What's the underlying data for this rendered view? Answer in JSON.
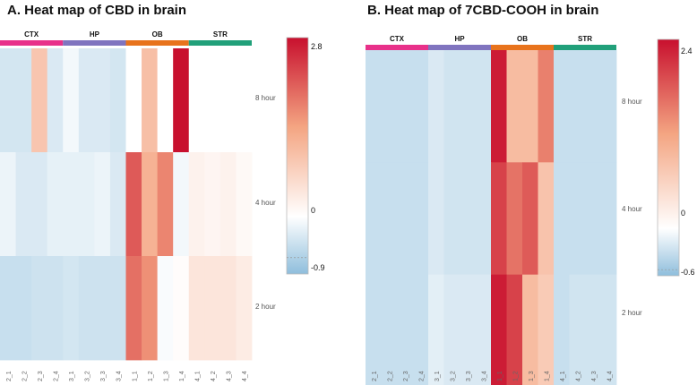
{
  "chart_data": [
    {
      "type": "heatmap",
      "title": "A. Heat map of CBD in brain",
      "groups": [
        "CTX",
        "HP",
        "OB",
        "STR"
      ],
      "group_colors": [
        "#e8318a",
        "#8074bf",
        "#e8731c",
        "#21a07a"
      ],
      "columns": [
        "2_1",
        "2_2",
        "2_3",
        "2_4",
        "3_1",
        "3_2",
        "3_3",
        "3_4",
        "1_1",
        "1_2",
        "1_3",
        "1_4",
        "4_1",
        "4_2",
        "4_3",
        "4_4"
      ],
      "rows": [
        "8 hour",
        "4 hour",
        "2 hour"
      ],
      "values": [
        [
          -0.35,
          -0.35,
          0.9,
          -0.3,
          -0.1,
          -0.3,
          -0.3,
          -0.35,
          0.0,
          1.0,
          0.0,
          2.8,
          0.0,
          0.0,
          0.0,
          0.0
        ],
        [
          -0.15,
          -0.3,
          -0.3,
          -0.2,
          -0.2,
          -0.2,
          -0.15,
          -0.3,
          2.1,
          1.2,
          1.7,
          -0.1,
          0.2,
          0.15,
          0.2,
          0.1
        ],
        [
          -0.45,
          -0.45,
          -0.4,
          -0.4,
          -0.35,
          -0.4,
          -0.4,
          -0.4,
          1.9,
          1.6,
          -0.05,
          0.05,
          0.4,
          0.4,
          0.4,
          0.3
        ]
      ],
      "colorbar": {
        "max": 2.8,
        "zero": 0,
        "min": -0.9,
        "max_label": "2.8",
        "zero_label": "0",
        "min_label": "-0.9"
      }
    },
    {
      "type": "heatmap",
      "title": "B. Heat map of 7CBD-COOH in brain",
      "groups": [
        "CTX",
        "HP",
        "OB",
        "STR"
      ],
      "group_colors": [
        "#e8318a",
        "#8074bf",
        "#e8731c",
        "#21a07a"
      ],
      "columns": [
        "2_1",
        "2_2",
        "2_3",
        "2_4",
        "3_1",
        "3_2",
        "3_3",
        "3_4",
        "1_1",
        "1_2",
        "1_3",
        "1_4",
        "4_1",
        "4_2",
        "4_3",
        "4_4"
      ],
      "rows": [
        "8 hour",
        "4 hour",
        "2 hour"
      ],
      "values": [
        [
          -0.3,
          -0.3,
          -0.3,
          -0.3,
          -0.2,
          -0.25,
          -0.25,
          -0.25,
          2.3,
          0.9,
          0.9,
          1.5,
          -0.3,
          -0.3,
          -0.3,
          -0.3
        ],
        [
          -0.3,
          -0.3,
          -0.3,
          -0.3,
          -0.2,
          -0.25,
          -0.25,
          -0.25,
          2.0,
          1.6,
          1.8,
          0.8,
          -0.3,
          -0.3,
          -0.3,
          -0.3
        ],
        [
          -0.3,
          -0.3,
          -0.3,
          -0.3,
          -0.15,
          -0.2,
          -0.2,
          -0.2,
          2.3,
          2.0,
          0.9,
          0.7,
          -0.3,
          -0.25,
          -0.25,
          -0.25
        ]
      ],
      "colorbar": {
        "max": 2.4,
        "zero": 0,
        "min": -0.6,
        "max_label": "2.4",
        "zero_label": "0",
        "min_label": "-0.6"
      }
    }
  ]
}
